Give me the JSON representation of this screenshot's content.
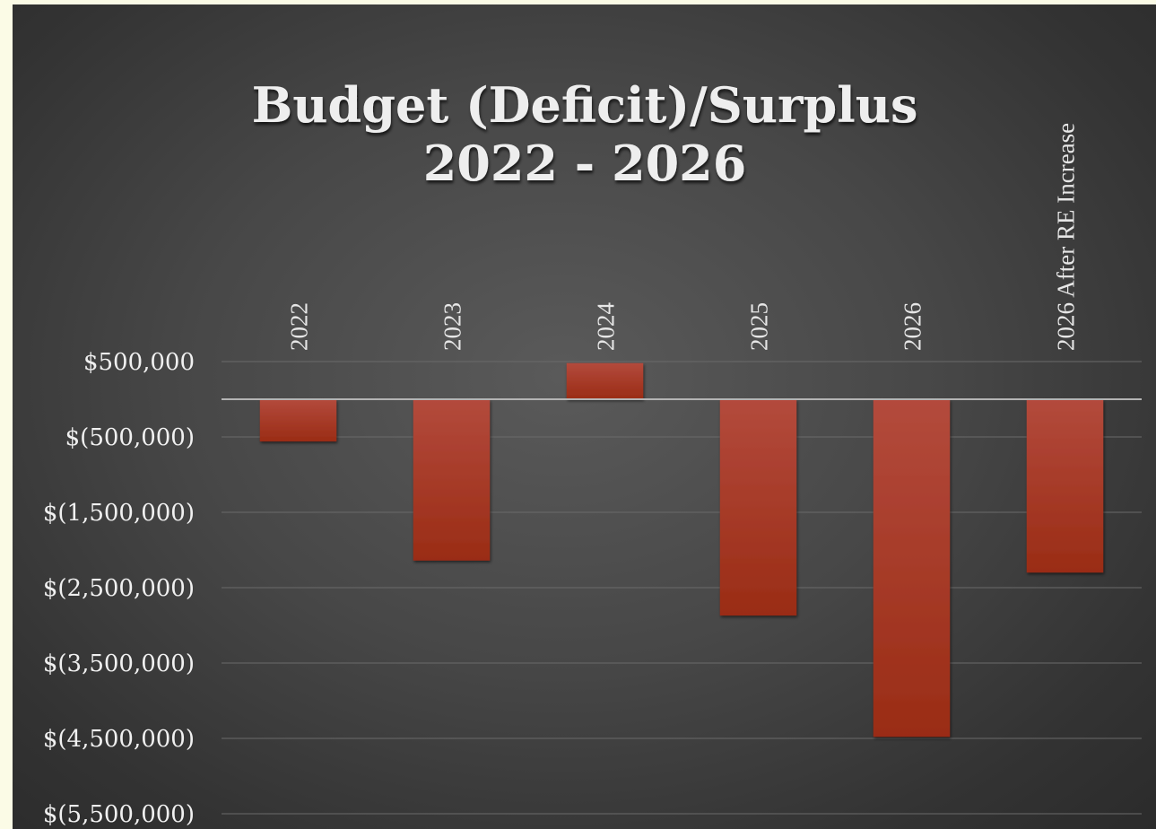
{
  "chart_data": {
    "type": "bar",
    "title_lines": [
      "Budget (Deficit)/Surplus",
      "2022 - 2026"
    ],
    "categories": [
      "2022",
      "2023",
      "2024",
      "2025",
      "2026",
      "2026 After RE Increase"
    ],
    "values": [
      -560000,
      -2140000,
      480000,
      -2870000,
      -4480000,
      -2300000
    ],
    "ytick_values": [
      500000,
      -500000,
      -1500000,
      -2500000,
      -3500000,
      -4500000,
      -5500000
    ],
    "ytick_labels": [
      "$500,000",
      "$(500,000)",
      "$(1,500,000)",
      "$(2,500,000)",
      "$(3,500,000)",
      "$(4,500,000)",
      "$(5,500,000)"
    ],
    "xlabel": "",
    "ylabel": "",
    "ylim": [
      -5500000,
      500000
    ],
    "grid": true,
    "legend": "none",
    "category_labels_position": "top-rotated",
    "colors": {
      "bar_top": "#b34a3c",
      "bar_bottom": "#9a2c15",
      "background": "#474747"
    }
  }
}
